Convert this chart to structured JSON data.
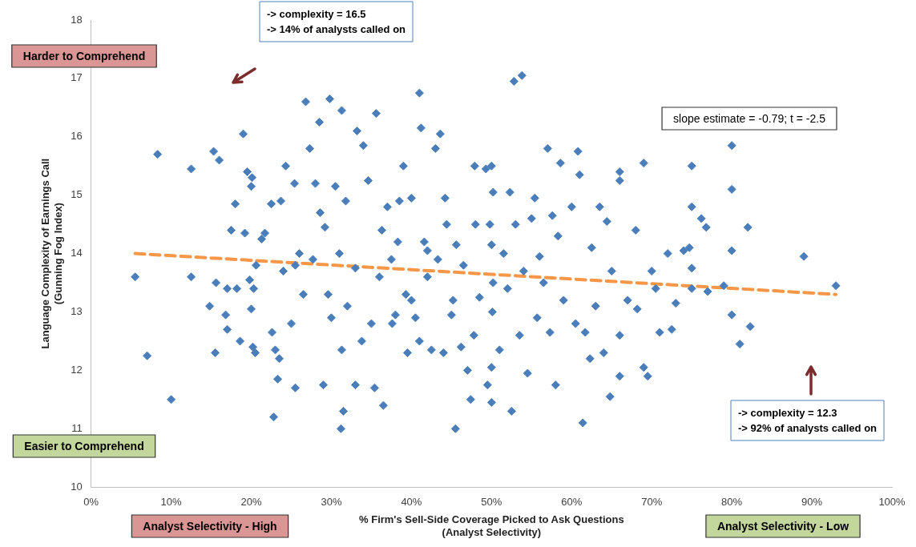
{
  "chart_data": {
    "type": "scatter",
    "xlabel": "% Firm's Sell-Side Coverage Picked to Ask Questions\n(Analyst Selectivity)",
    "ylabel": "Language Complexity of Earnings Call\n(Gunning Fog Index)",
    "xlim": [
      0,
      100
    ],
    "xticks": [
      {
        "value": 0,
        "label": "0%"
      },
      {
        "value": 10,
        "label": "10%"
      },
      {
        "value": 20,
        "label": "20%"
      },
      {
        "value": 30,
        "label": "30%"
      },
      {
        "value": 40,
        "label": "40%"
      },
      {
        "value": 50,
        "label": "50%"
      },
      {
        "value": 60,
        "label": "60%"
      },
      {
        "value": 70,
        "label": "70%"
      },
      {
        "value": 80,
        "label": "80%"
      },
      {
        "value": 90,
        "label": "90%"
      },
      {
        "value": 100,
        "label": "100%"
      }
    ],
    "ylim": [
      10,
      18
    ],
    "yticks": [
      10,
      11,
      12,
      13,
      14,
      15,
      16,
      17,
      18
    ],
    "grid": false,
    "legend": false,
    "marker": "diamond",
    "series": [
      {
        "color": "#4a7ebb",
        "x": [
          5.5,
          7,
          8.3,
          10,
          12.5,
          12.5,
          14.8,
          15.3,
          15.5,
          15.6,
          16,
          16.8,
          17,
          17,
          17.5,
          18,
          18.2,
          18.6,
          19,
          19.2,
          19.5,
          19.8,
          20,
          20.1,
          20,
          20.3,
          20.2,
          20.5,
          20.6,
          21.3,
          21.7,
          22.5,
          22.6,
          22.8,
          23,
          23.3,
          23.5,
          23.7,
          24,
          24.3,
          25,
          25.4,
          25.5,
          25.5,
          26,
          26.5,
          26.8,
          27.3,
          27.7,
          28,
          28.5,
          28.6,
          29,
          29.6,
          29.8,
          29.2,
          30,
          30.5,
          31,
          31.3,
          31.5,
          31.2,
          31.3,
          31.8,
          32,
          33,
          33.2,
          33,
          33.8,
          34,
          34.6,
          35,
          35.4,
          35.6,
          36,
          36.3,
          36.5,
          37,
          37.5,
          37.6,
          38,
          38.3,
          38.5,
          39,
          39.3,
          39.5,
          40,
          40,
          40.5,
          41,
          41,
          41.2,
          41.6,
          42,
          42,
          42.5,
          43,
          43.3,
          43.6,
          44,
          44.2,
          44.4,
          45,
          45.2,
          45.5,
          45.6,
          46.2,
          46.5,
          47,
          47.4,
          47.8,
          47.9,
          48,
          48.5,
          49.3,
          49.5,
          49.8,
          50,
          50.1,
          50,
          50,
          50,
          50.2,
          50.2,
          51,
          51.5,
          52,
          52.3,
          52.5,
          52.8,
          53,
          53.5,
          53.8,
          54,
          54.5,
          55,
          55.4,
          55.7,
          56,
          56.5,
          57,
          57.3,
          57.6,
          58,
          58.3,
          58.6,
          59,
          60,
          60.5,
          60.8,
          61,
          61.4,
          61.7,
          62.5,
          62.3,
          63,
          63.5,
          64,
          64.4,
          64.8,
          65,
          66,
          66,
          66,
          66,
          67,
          68,
          68.2,
          69,
          69,
          69.5,
          70,
          70.5,
          71,
          72,
          72.5,
          73,
          74,
          74.7,
          75,
          75,
          75,
          75,
          76.2,
          76.8,
          77,
          79,
          80,
          80,
          80,
          80,
          81,
          82,
          82.3,
          89,
          93
        ],
        "values": [
          13.6,
          12.25,
          15.7,
          11.5,
          15.45,
          13.6,
          13.1,
          15.75,
          12.3,
          13.5,
          15.6,
          12.95,
          13.4,
          12.7,
          14.4,
          14.85,
          13.4,
          12.5,
          16.05,
          14.35,
          15.4,
          13.55,
          15.15,
          15.3,
          13.05,
          13.4,
          12.4,
          12.3,
          13.8,
          14.25,
          14.35,
          14.85,
          12.65,
          11.2,
          12.35,
          11.85,
          12.2,
          14.9,
          13.7,
          15.5,
          12.8,
          15.2,
          13.8,
          11.7,
          14,
          13.3,
          16.6,
          15.8,
          13.9,
          15.2,
          16.25,
          14.7,
          11.75,
          13.3,
          16.65,
          14.45,
          12.9,
          15.15,
          14,
          12.35,
          11.3,
          11,
          16.45,
          14.9,
          13.1,
          13.75,
          16.1,
          11.75,
          12.5,
          15.85,
          15.25,
          12.8,
          11.7,
          16.4,
          13.6,
          14.4,
          11.4,
          14.8,
          13.9,
          12.8,
          12.95,
          14.2,
          14.9,
          15.5,
          13.3,
          12.3,
          14.95,
          13.2,
          12.9,
          12.5,
          16.75,
          16.15,
          14.2,
          14.05,
          13.6,
          12.35,
          15.8,
          13.9,
          16.05,
          12.3,
          14.95,
          14.5,
          12.95,
          13.2,
          11,
          14.15,
          12.4,
          13.8,
          12,
          11.5,
          12.6,
          15.5,
          14.5,
          13.25,
          15.45,
          11.75,
          14.5,
          15.5,
          13,
          12.05,
          11.45,
          14.15,
          13.5,
          15.05,
          12.35,
          14,
          13.4,
          15.05,
          11.3,
          16.95,
          14.5,
          12.6,
          17.05,
          13.7,
          11.95,
          14.6,
          14.95,
          12.9,
          13.95,
          13.5,
          15.8,
          12.65,
          14.65,
          11.75,
          14.3,
          15.55,
          13.2,
          14.8,
          12.8,
          15.75,
          15.35,
          11.1,
          12.65,
          14.1,
          12.2,
          13.1,
          14.8,
          12.3,
          14.55,
          11.55,
          13.7,
          15.4,
          12.6,
          15.25,
          11.9,
          13.2,
          14.4,
          13.05,
          15.55,
          12.05,
          11.9,
          13.7,
          13.4,
          12.65,
          14,
          12.7,
          13.15,
          14.05,
          14.1,
          15.5,
          14.8,
          13.4,
          13.75,
          14.6,
          14.45,
          13.35,
          13.45,
          15.85,
          15.1,
          14.05,
          12.95,
          12.45,
          14.45,
          12.75,
          13.95,
          13.45
        ]
      },
      {
        "type": "line",
        "color": "#f79646",
        "line_style": "dashed",
        "marker": "none",
        "x": [
          5.5,
          93
        ],
        "values": [
          14,
          13.3
        ]
      }
    ],
    "annotations": [
      "Harder to Comprehend",
      "Easier to Comprehend",
      "Analyst Selectivity - High",
      "Analyst Selectivity - Low",
      "slope estimate = -0.79; t = -2.5",
      "-> complexity = 16.5\n-> 14% of analysts called on",
      "-> complexity = 12.3\n-> 92% of analysts called on"
    ]
  }
}
